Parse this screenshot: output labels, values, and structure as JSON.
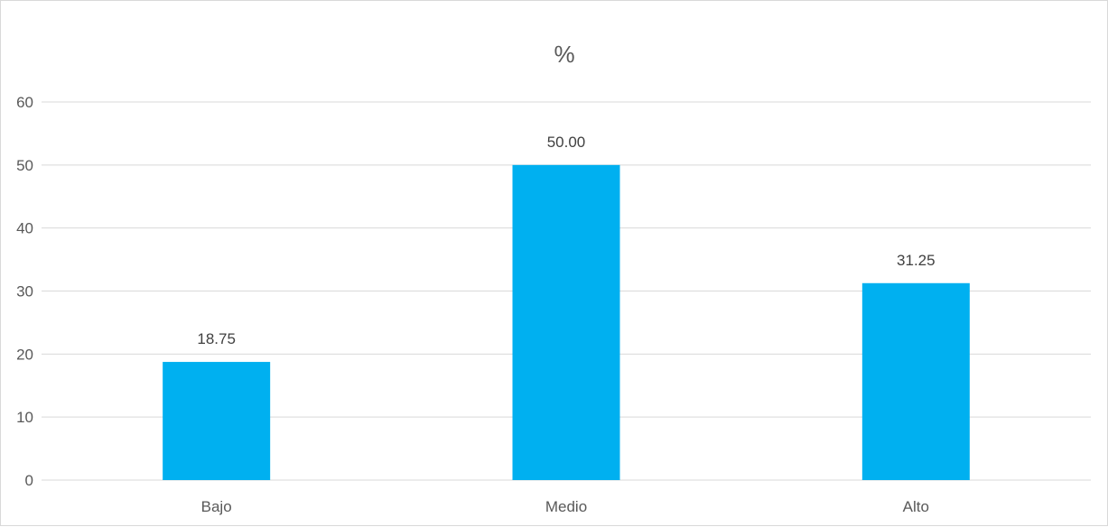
{
  "chart_data": {
    "type": "bar",
    "title": "%",
    "categories": [
      "Bajo",
      "Medio",
      "Alto"
    ],
    "values": [
      18.75,
      50.0,
      31.25
    ],
    "data_labels": [
      "18.75",
      "50.00",
      "31.25"
    ],
    "xlabel": "",
    "ylabel": "",
    "ylim": [
      0,
      60
    ],
    "yticks": [
      0,
      10,
      20,
      30,
      40,
      50,
      60
    ],
    "grid": true,
    "legend": "none",
    "bar_color": "#00B0F0"
  }
}
